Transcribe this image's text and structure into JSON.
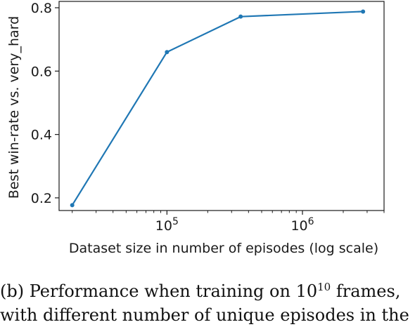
{
  "chart_data": {
    "type": "line",
    "xscale": "log",
    "xlabel": "Dataset size in number of episodes (log scale)",
    "ylabel": "Best win-rate vs. very_hard",
    "xlim": [
      16000,
      4000000
    ],
    "ylim": [
      0.16,
      0.82
    ],
    "x_ticks": [
      {
        "value": 100000,
        "base": "10",
        "exp": "5"
      },
      {
        "value": 1000000,
        "base": "10",
        "exp": "6"
      }
    ],
    "y_ticks": [
      {
        "value": 0.2,
        "label": "0.2"
      },
      {
        "value": 0.4,
        "label": "0.4"
      },
      {
        "value": 0.6,
        "label": "0.6"
      },
      {
        "value": 0.8,
        "label": "0.8"
      }
    ],
    "series": [
      {
        "color": "#1f77b4",
        "x": [
          20000,
          100000,
          350000,
          2800000
        ],
        "y": [
          0.177,
          0.66,
          0.772,
          0.788
        ]
      }
    ]
  },
  "caption": {
    "line1_prefix": "(b) Performance when training on 10",
    "line1_exp": "10",
    "line1_suffix": " frames,",
    "line2": "with different number of unique episodes in the"
  }
}
